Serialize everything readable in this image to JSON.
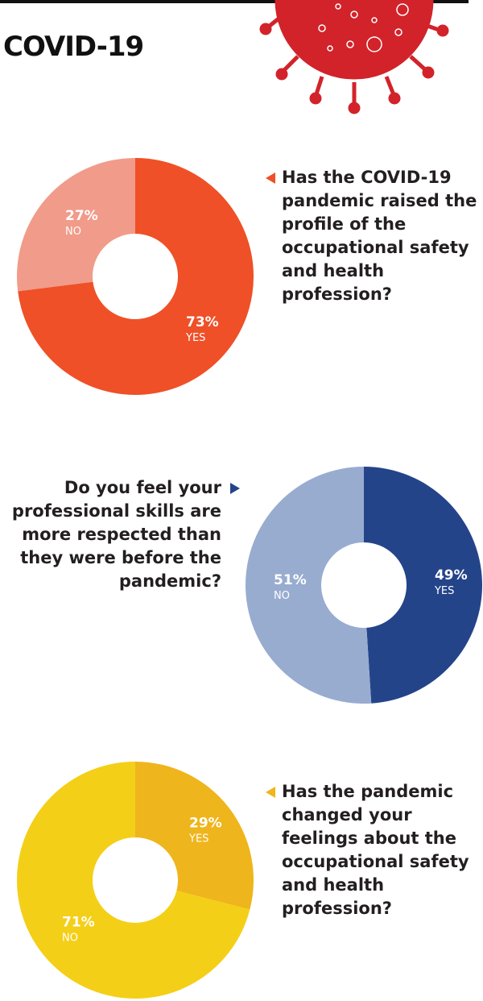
{
  "title": "COVID-19",
  "chart_data": [
    {
      "type": "pie",
      "title": "Has the COVID-19 pandemic raised the profile of the occupational safety and health profession?",
      "categories": [
        "YES",
        "NO"
      ],
      "values": [
        73,
        27
      ],
      "value_labels": [
        "73%",
        "27%"
      ],
      "colors": [
        "#ef5027",
        "#f19b8a"
      ]
    },
    {
      "type": "pie",
      "title": "Do you feel your professional skills are more respected than they were before the pandemic?",
      "categories": [
        "YES",
        "NO"
      ],
      "values": [
        49,
        51
      ],
      "value_labels": [
        "49%",
        "51%"
      ],
      "colors": [
        "#24448a",
        "#98acd0"
      ]
    },
    {
      "type": "pie",
      "title": "Has the pandemic changed your feelings about the occupational safety and health profession?",
      "categories": [
        "YES",
        "NO"
      ],
      "values": [
        29,
        71
      ],
      "value_labels": [
        "29%",
        "71%"
      ],
      "colors": [
        "#efb51c",
        "#f4cf18"
      ]
    }
  ]
}
